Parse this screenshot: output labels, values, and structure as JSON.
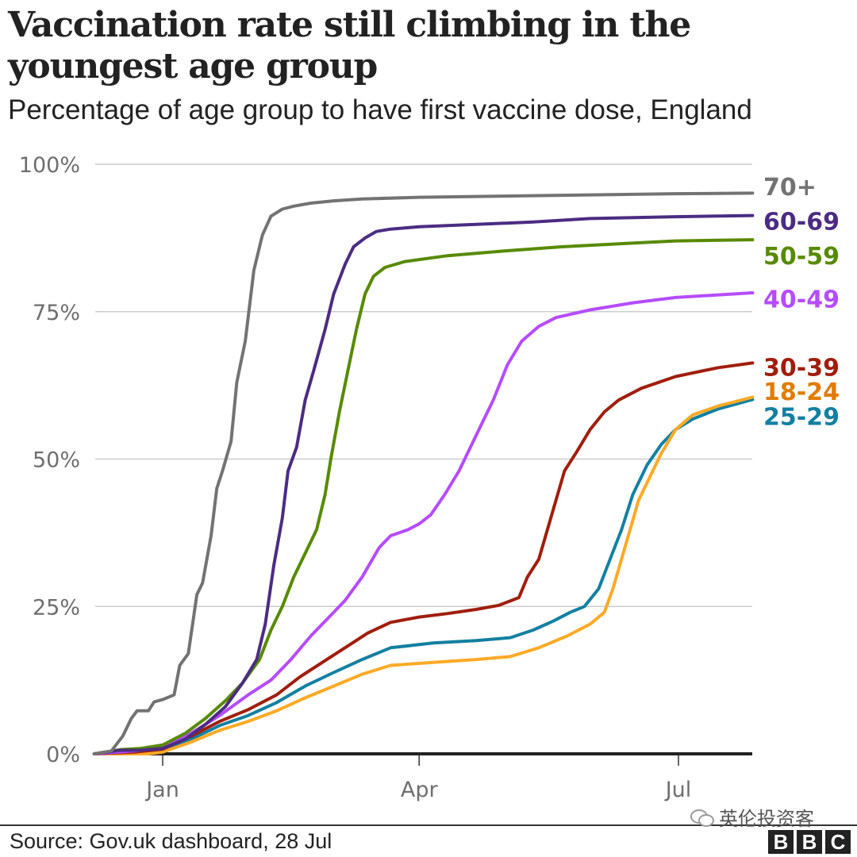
{
  "header": {
    "title": "Vaccination rate still climbing in the youngest age group",
    "subtitle": "Percentage of age group to have first vaccine dose, England"
  },
  "footer": {
    "source": "Source: Gov.uk dashboard, 28 Jul",
    "watermark": "英伦投资客",
    "logo_letters": [
      "B",
      "B",
      "C"
    ]
  },
  "chart_data": {
    "type": "line",
    "title": "Vaccination rate still climbing in the youngest age group",
    "subtitle": "Percentage of age group to have first vaccine dose, England",
    "xlabel": "",
    "ylabel": "",
    "x_unit": "days since 1 Jan 2021",
    "xlim": [
      -26,
      207
    ],
    "ylim": [
      0,
      100
    ],
    "x_ticks": [
      {
        "value": 0,
        "label": "Jan"
      },
      {
        "value": 90,
        "label": "Apr"
      },
      {
        "value": 181,
        "label": "Jul"
      }
    ],
    "y_ticks": [
      {
        "value": 0,
        "label": "0%"
      },
      {
        "value": 25,
        "label": "25%"
      },
      {
        "value": 50,
        "label": "50%"
      },
      {
        "value": 75,
        "label": "75%"
      },
      {
        "value": 100,
        "label": "100%"
      }
    ],
    "grid": "horizontal",
    "legend": "direct labels at line ends, right",
    "series": [
      {
        "name": "70+",
        "color": "#737373",
        "points": [
          [
            -24,
            0
          ],
          [
            -18,
            0.5
          ],
          [
            -14,
            3
          ],
          [
            -11,
            6
          ],
          [
            -9,
            7.3
          ],
          [
            -5,
            7.3
          ],
          [
            -3,
            8.8
          ],
          [
            0,
            9.2
          ],
          [
            4,
            10
          ],
          [
            6,
            15
          ],
          [
            9,
            17
          ],
          [
            12,
            27
          ],
          [
            14,
            29
          ],
          [
            17,
            37
          ],
          [
            19,
            45
          ],
          [
            21,
            48
          ],
          [
            24,
            53
          ],
          [
            26,
            63
          ],
          [
            29,
            70
          ],
          [
            32,
            82
          ],
          [
            35,
            88
          ],
          [
            38,
            91.2
          ],
          [
            42,
            92.4
          ],
          [
            46,
            92.9
          ],
          [
            52,
            93.4
          ],
          [
            60,
            93.8
          ],
          [
            70,
            94.1
          ],
          [
            90,
            94.4
          ],
          [
            120,
            94.6
          ],
          [
            150,
            94.8
          ],
          [
            180,
            95.0
          ],
          [
            207,
            95.1
          ]
        ]
      },
      {
        "name": "60-69",
        "color": "#4c2c82",
        "points": [
          [
            -24,
            0
          ],
          [
            -15,
            0.6
          ],
          [
            -8,
            0.6
          ],
          [
            0,
            0.9
          ],
          [
            8,
            2.5
          ],
          [
            15,
            5
          ],
          [
            22,
            8
          ],
          [
            28,
            12
          ],
          [
            33,
            16
          ],
          [
            36,
            22
          ],
          [
            39,
            32
          ],
          [
            42,
            40
          ],
          [
            44,
            48
          ],
          [
            47,
            52
          ],
          [
            50,
            60
          ],
          [
            53,
            65
          ],
          [
            57,
            72
          ],
          [
            60,
            78
          ],
          [
            64,
            83
          ],
          [
            67,
            86
          ],
          [
            71,
            87.5
          ],
          [
            75,
            88.6
          ],
          [
            80,
            89
          ],
          [
            90,
            89.4
          ],
          [
            110,
            89.8
          ],
          [
            130,
            90.2
          ],
          [
            150,
            90.8
          ],
          [
            180,
            91.1
          ],
          [
            207,
            91.3
          ]
        ]
      },
      {
        "name": "50-59",
        "color": "#588a00",
        "points": [
          [
            -24,
            0
          ],
          [
            -15,
            0.7
          ],
          [
            -8,
            0.9
          ],
          [
            0,
            1.5
          ],
          [
            8,
            3.5
          ],
          [
            15,
            6
          ],
          [
            22,
            9
          ],
          [
            28,
            12
          ],
          [
            34,
            16
          ],
          [
            38,
            21
          ],
          [
            42,
            25
          ],
          [
            46,
            30
          ],
          [
            50,
            34
          ],
          [
            54,
            38
          ],
          [
            57,
            44
          ],
          [
            59,
            50
          ],
          [
            62,
            58
          ],
          [
            65,
            65
          ],
          [
            68,
            72
          ],
          [
            71,
            78
          ],
          [
            74,
            81
          ],
          [
            78,
            82.5
          ],
          [
            85,
            83.5
          ],
          [
            100,
            84.5
          ],
          [
            120,
            85.3
          ],
          [
            140,
            86
          ],
          [
            160,
            86.5
          ],
          [
            180,
            87
          ],
          [
            207,
            87.2
          ]
        ]
      },
      {
        "name": "40-49",
        "color": "#b54cff",
        "points": [
          [
            -24,
            0
          ],
          [
            -10,
            0.5
          ],
          [
            0,
            1
          ],
          [
            10,
            3.5
          ],
          [
            20,
            6.5
          ],
          [
            30,
            10
          ],
          [
            38,
            12.5
          ],
          [
            45,
            16
          ],
          [
            52,
            20
          ],
          [
            58,
            23
          ],
          [
            64,
            26
          ],
          [
            70,
            30
          ],
          [
            76,
            35
          ],
          [
            80,
            37
          ],
          [
            86,
            38
          ],
          [
            90,
            39
          ],
          [
            94,
            40.5
          ],
          [
            99,
            44
          ],
          [
            104,
            48
          ],
          [
            110,
            54
          ],
          [
            116,
            60
          ],
          [
            121,
            66
          ],
          [
            126,
            70
          ],
          [
            132,
            72.5
          ],
          [
            138,
            74
          ],
          [
            150,
            75.3
          ],
          [
            165,
            76.5
          ],
          [
            180,
            77.4
          ],
          [
            207,
            78.2
          ]
        ]
      },
      {
        "name": "30-39",
        "color": "#a01e0d",
        "points": [
          [
            -24,
            0
          ],
          [
            -10,
            0.3
          ],
          [
            0,
            0.8
          ],
          [
            10,
            3
          ],
          [
            20,
            5.5
          ],
          [
            30,
            7.5
          ],
          [
            40,
            10
          ],
          [
            48,
            13
          ],
          [
            56,
            15.5
          ],
          [
            64,
            18
          ],
          [
            72,
            20.5
          ],
          [
            80,
            22.3
          ],
          [
            90,
            23.2
          ],
          [
            100,
            23.8
          ],
          [
            110,
            24.5
          ],
          [
            118,
            25.2
          ],
          [
            125,
            26.5
          ],
          [
            128,
            30
          ],
          [
            132,
            33
          ],
          [
            135,
            38
          ],
          [
            138,
            43
          ],
          [
            141,
            48
          ],
          [
            145,
            51
          ],
          [
            150,
            55
          ],
          [
            155,
            58
          ],
          [
            160,
            60
          ],
          [
            168,
            62
          ],
          [
            180,
            64
          ],
          [
            195,
            65.5
          ],
          [
            207,
            66.3
          ]
        ]
      },
      {
        "name": "18-24",
        "color": "#fdaa26",
        "points": [
          [
            -24,
            0
          ],
          [
            -5,
            0
          ],
          [
            0,
            0.3
          ],
          [
            10,
            2
          ],
          [
            20,
            4
          ],
          [
            30,
            5.5
          ],
          [
            40,
            7.3
          ],
          [
            50,
            9.5
          ],
          [
            60,
            11.5
          ],
          [
            70,
            13.5
          ],
          [
            80,
            15
          ],
          [
            95,
            15.5
          ],
          [
            110,
            16
          ],
          [
            122,
            16.5
          ],
          [
            132,
            18
          ],
          [
            142,
            20
          ],
          [
            150,
            22
          ],
          [
            155,
            24
          ],
          [
            158,
            28
          ],
          [
            161,
            33
          ],
          [
            164,
            38
          ],
          [
            167,
            43
          ],
          [
            171,
            47
          ],
          [
            175,
            51
          ],
          [
            180,
            55
          ],
          [
            186,
            57.5
          ],
          [
            195,
            59
          ],
          [
            207,
            60.5
          ]
        ]
      },
      {
        "name": "25-29",
        "color": "#1380a1",
        "points": [
          [
            -24,
            0
          ],
          [
            -10,
            0.2
          ],
          [
            0,
            0.6
          ],
          [
            10,
            2.5
          ],
          [
            20,
            4.8
          ],
          [
            30,
            6.5
          ],
          [
            40,
            8.7
          ],
          [
            50,
            11.5
          ],
          [
            60,
            13.8
          ],
          [
            70,
            16
          ],
          [
            80,
            18
          ],
          [
            95,
            18.8
          ],
          [
            110,
            19.2
          ],
          [
            122,
            19.7
          ],
          [
            130,
            21
          ],
          [
            137,
            22.5
          ],
          [
            143,
            24
          ],
          [
            148,
            25
          ],
          [
            153,
            28
          ],
          [
            157,
            33
          ],
          [
            161,
            38
          ],
          [
            165,
            44
          ],
          [
            170,
            49
          ],
          [
            175,
            52.5
          ],
          [
            180,
            55
          ],
          [
            186,
            56.8
          ],
          [
            195,
            58.5
          ],
          [
            207,
            60.1
          ]
        ]
      }
    ],
    "end_labels": [
      {
        "series": "70+",
        "label": "70+",
        "label_value": 96.2
      },
      {
        "series": "60-69",
        "label": "60-69",
        "label_value": 90.4
      },
      {
        "series": "50-59",
        "label": "50-59",
        "label_value": 84.5
      },
      {
        "series": "40-49",
        "label": "40-49",
        "label_value": 77.2
      },
      {
        "series": "30-39",
        "label": "30-39",
        "label_value": 65.6
      },
      {
        "series": "18-24",
        "label": "18-24",
        "label_value": 61.5
      },
      {
        "series": "25-29",
        "label": "25-29",
        "label_value": 57.3
      }
    ],
    "label_colors": {
      "18-24": "#e07b00",
      "25-29": "#1380a1"
    }
  }
}
